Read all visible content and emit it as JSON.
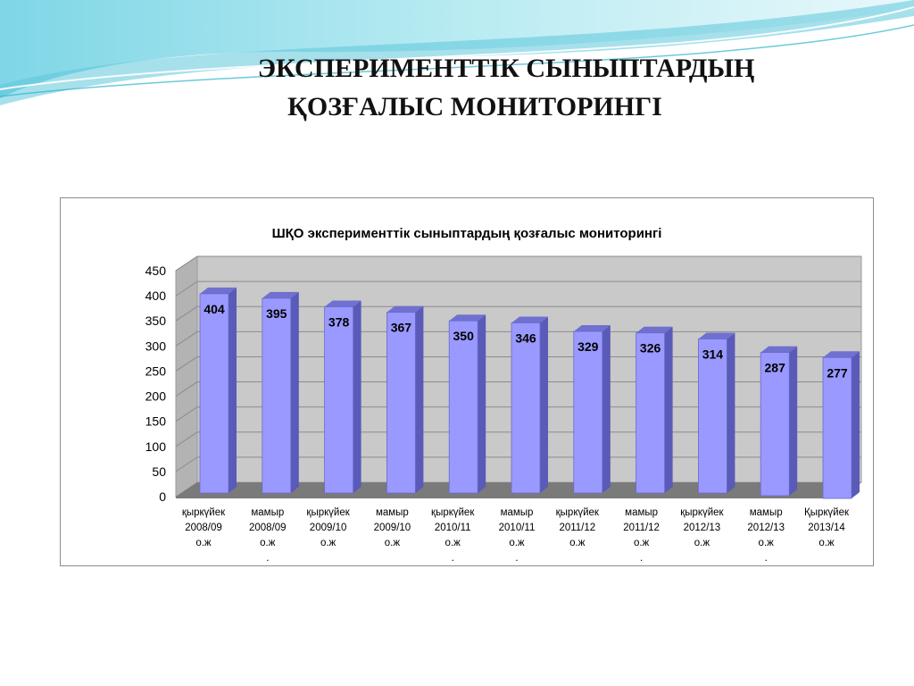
{
  "slide": {
    "title_line1": "ЭКСПЕРИМЕНТТІК СЫНЫПТАРДЫҢ",
    "title_line2": "ҚОЗҒАЛЫС МОНИТОРИНГІ"
  },
  "colors": {
    "bar_front": "#9999ff",
    "bar_side": "#5a5ab8",
    "bar_top": "#7070d0",
    "wall": "#c9c9c9",
    "floor": "#7a7a7a",
    "header_teal": "#4fc3d6"
  },
  "chart_data": {
    "type": "bar",
    "title": "ШҚО эксперименттік сыныптардың қозғалыс мониторингі",
    "ylim": [
      0,
      450
    ],
    "yticks": [
      "0",
      "50",
      "100",
      "150",
      "200",
      "250",
      "300",
      "350",
      "400",
      "450"
    ],
    "grid": true,
    "legend": "none",
    "categories": [
      [
        "қыркүйек",
        "2008/09",
        "о.ж"
      ],
      [
        "мамыр",
        "2008/09",
        "о.ж",
        "."
      ],
      [
        "қыркүйек",
        "2009/10",
        "о.ж"
      ],
      [
        "мамыр",
        "2009/10",
        "о.ж"
      ],
      [
        "қыркүйек",
        "2010/11",
        "о.ж",
        "."
      ],
      [
        "мамыр",
        "2010/11",
        "о.ж",
        "."
      ],
      [
        "қыркүйек",
        "2011/12",
        "о.ж"
      ],
      [
        "мамыр",
        "2011/12",
        "о.ж",
        "."
      ],
      [
        "қыркүйек",
        "2012/13",
        "о.ж"
      ],
      [
        "мамыр",
        "2012/13",
        "о.ж",
        "."
      ],
      [
        "Қыркүйек",
        "2013/14",
        "о.ж"
      ]
    ],
    "values": [
      404,
      395,
      378,
      367,
      350,
      346,
      329,
      326,
      314,
      287,
      277
    ]
  }
}
